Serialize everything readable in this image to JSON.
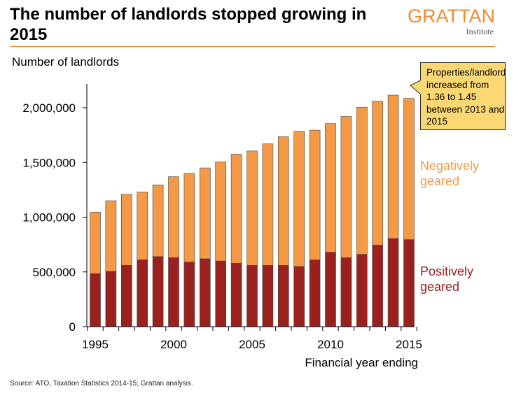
{
  "header": {
    "title": "The number of landlords stopped growing in 2015",
    "logo_name": "GRATTAN",
    "logo_sub": "Institute"
  },
  "source": "Source: ATO, Taxation Statistics 2014-15; Grattan analysis.",
  "colors": {
    "positively_geared": "#9b2020",
    "negatively_geared": "#f49a46",
    "accent": "#f28a30",
    "annotation_fill": "#fbd873",
    "axis": "#000000"
  },
  "chart_data": {
    "type": "bar",
    "stacked": true,
    "title": "The number of landlords stopped growing in 2015",
    "ylabel": "Number of landlords",
    "xlabel": "Financial year ending",
    "ylim": [
      0,
      2300000
    ],
    "yticks": [
      0,
      500000,
      1000000,
      1500000,
      2000000
    ],
    "ytick_labels": [
      "0",
      "500,000",
      "1,000,000",
      "1,500,000",
      "2,000,000"
    ],
    "xtick_labels": [
      "1995",
      "2000",
      "2005",
      "2010",
      "2015"
    ],
    "categories": [
      1995,
      1996,
      1997,
      1998,
      1999,
      2000,
      2001,
      2002,
      2003,
      2004,
      2005,
      2006,
      2007,
      2008,
      2009,
      2010,
      2011,
      2012,
      2013,
      2014,
      2015
    ],
    "grid": false,
    "series": [
      {
        "name": "Positively geared",
        "color": "#9b2020",
        "values": [
          485000,
          505000,
          560000,
          610000,
          640000,
          630000,
          590000,
          620000,
          600000,
          580000,
          560000,
          560000,
          560000,
          550000,
          610000,
          680000,
          630000,
          660000,
          745000,
          805000,
          795000
        ]
      },
      {
        "name": "Negatively geared",
        "color": "#f49a46",
        "values": [
          560000,
          645000,
          650000,
          620000,
          655000,
          740000,
          810000,
          830000,
          905000,
          995000,
          1045000,
          1110000,
          1175000,
          1235000,
          1185000,
          1175000,
          1290000,
          1345000,
          1315000,
          1310000,
          1290000
        ]
      }
    ],
    "legend": [
      {
        "label": "Negatively geared",
        "color": "#f49a46"
      },
      {
        "label": "Positively geared",
        "color": "#9b2020"
      }
    ],
    "annotation": "Properties/landlord increased from 1.36 to 1.45 between 2013 and 2015"
  }
}
